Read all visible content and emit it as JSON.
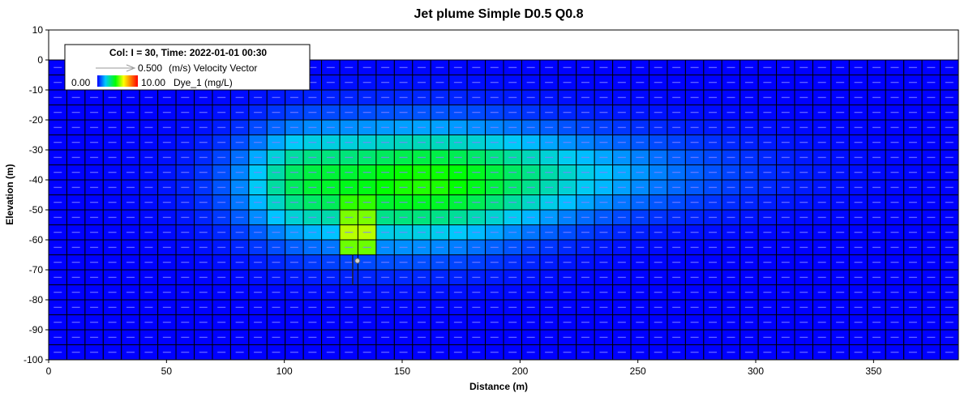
{
  "chart_data": {
    "type": "heatmap",
    "title": "Jet plume Simple D0.5 Q0.8",
    "xlabel": "Distance (m)",
    "ylabel": "Elevation (m)",
    "xlim": [
      0,
      386
    ],
    "ylim": [
      -100,
      10
    ],
    "water_surface": 0,
    "x_ticks": [
      "0",
      "50",
      "100",
      "150",
      "200",
      "250",
      "300",
      "350"
    ],
    "x_tick_values": [
      0,
      50,
      100,
      150,
      200,
      250,
      300,
      350
    ],
    "y_ticks": [
      "10",
      "0",
      "-10",
      "-20",
      "-30",
      "-40",
      "-50",
      "-60",
      "-70",
      "-80",
      "-90",
      "-100"
    ],
    "y_tick_values": [
      10,
      0,
      -10,
      -20,
      -30,
      -40,
      -50,
      -60,
      -70,
      -80,
      -90,
      -100
    ],
    "grid": {
      "nx": 50,
      "nz": 20,
      "dx": 7.72,
      "dz": 5
    },
    "colorbar": {
      "min": 0,
      "max": 10,
      "min_label": "0.00",
      "max_label": "10.00",
      "variable": "Dye_1 (mg/L)"
    },
    "vector_legend": {
      "magnitude": "0.500",
      "label": "(m/s) Velocity Vector"
    },
    "legend_header": "Col: I = 30, Time: 2022-01-01 00:30",
    "diffuser": {
      "x": 131,
      "z": -67
    },
    "plume": {
      "source_x": 129.5,
      "source_z": -57,
      "peak_value": 6.0,
      "core": {
        "x_center": 152,
        "z_center": -43,
        "sigma_x": 40,
        "sigma_z": 14,
        "amplitude": 3.6
      },
      "downstream_tail": {
        "x_center": 205,
        "z_center": -38,
        "sigma_x": 60,
        "sigma_z": 10,
        "amplitude": 1.8
      },
      "upstream_edge": {
        "x_center": 105,
        "z_center": -40,
        "sigma_x": 15,
        "sigma_z": 12,
        "amplitude": 1.5
      }
    },
    "colors": {
      "background": "#0000ff",
      "cell_border": "#000000",
      "vector": "#8080ff",
      "scale": [
        "#0000ff",
        "#00c8ff",
        "#00ff00",
        "#ffff00",
        "#ff8000",
        "#ff0000"
      ]
    }
  }
}
